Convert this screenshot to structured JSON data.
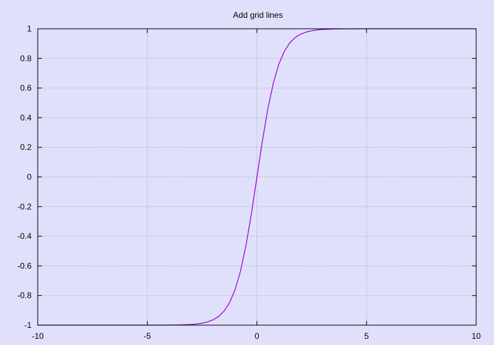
{
  "chart_data": {
    "type": "line",
    "title": "Add grid lines",
    "xlabel": "",
    "ylabel": "",
    "xlim": [
      -10,
      10
    ],
    "ylim": [
      -1,
      1
    ],
    "x_ticks": [
      -10,
      -5,
      0,
      5,
      10
    ],
    "x_tick_labels": [
      "-10",
      "-5",
      "0",
      "5",
      "10"
    ],
    "y_ticks": [
      -1,
      -0.8,
      -0.6,
      -0.4,
      -0.2,
      0,
      0.2,
      0.4,
      0.6,
      0.8,
      1
    ],
    "y_tick_labels": [
      "-1",
      "-0.8",
      "-0.6",
      "-0.4",
      "-0.2",
      "0",
      "0.2",
      "0.4",
      "0.6",
      "0.8",
      "1"
    ],
    "grid": true,
    "legend": "none",
    "series": [
      {
        "x": [
          -10,
          -9,
          -8,
          -7,
          -6,
          -5,
          -4,
          -3.5,
          -3,
          -2.75,
          -2.5,
          -2.25,
          -2,
          -1.75,
          -1.5,
          -1.25,
          -1,
          -0.75,
          -0.5,
          -0.25,
          0,
          0.25,
          0.5,
          0.75,
          1,
          1.25,
          1.5,
          1.75,
          2,
          2.25,
          2.5,
          2.75,
          3,
          3.5,
          4,
          5,
          6,
          7,
          8,
          9,
          10
        ],
        "y": [
          -1,
          -1,
          -1,
          -1,
          -1,
          -1,
          -0.9993,
          -0.9982,
          -0.9951,
          -0.9918,
          -0.9866,
          -0.978,
          -0.964,
          -0.9414,
          -0.9051,
          -0.8483,
          -0.7616,
          -0.6351,
          -0.4621,
          -0.2449,
          0,
          0.2449,
          0.4621,
          0.6351,
          0.7616,
          0.8483,
          0.9051,
          0.9414,
          0.964,
          0.978,
          0.9866,
          0.9918,
          0.9951,
          0.9982,
          0.9993,
          1,
          1,
          1,
          1,
          1,
          1
        ]
      }
    ],
    "colors": {
      "background": "#e0e0fc",
      "line": "#9400d3",
      "grid": "#a0a0a0",
      "axis": "#000000"
    }
  }
}
